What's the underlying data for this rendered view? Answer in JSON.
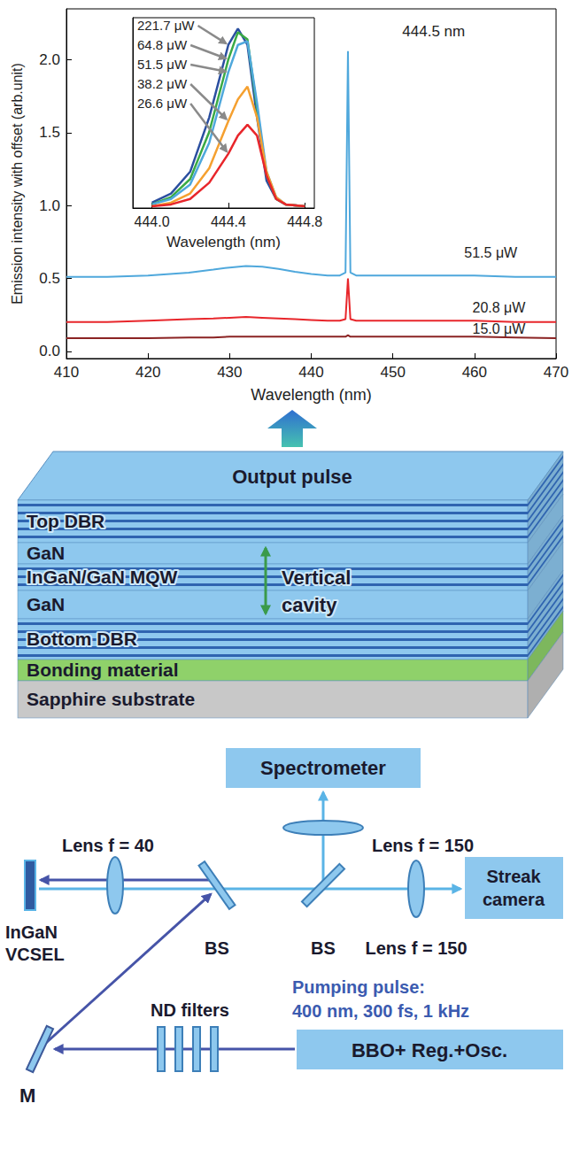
{
  "chart_data": [
    {
      "type": "line",
      "x_label": "Wavelength (nm)",
      "y_label": "Emission intensity with offset (arb.unit)",
      "xlim": [
        410,
        470
      ],
      "xticks": [
        410,
        420,
        430,
        440,
        450,
        460,
        470
      ],
      "ylim": [
        -0.05,
        2.35
      ],
      "yticks": [
        {
          "value": 0,
          "label": "0.0"
        },
        {
          "value": 0.5,
          "label": "0.5"
        },
        {
          "value": 1,
          "label": "1.0"
        },
        {
          "value": 1.5,
          "label": "1.5"
        },
        {
          "value": 2,
          "label": "2.0"
        }
      ],
      "grid": false,
      "series": [
        {
          "name": "51.5 μW",
          "color": "#4fa8dc",
          "name_xy": [
            462,
            0.68
          ],
          "x": [
            410,
            415,
            420,
            425,
            428,
            430,
            432,
            434,
            436,
            438,
            440,
            442,
            443.5,
            444.2,
            444.5,
            444.8,
            445.5,
            447,
            450,
            455,
            460,
            465,
            470
          ],
          "values": [
            0.51,
            0.51,
            0.52,
            0.54,
            0.56,
            0.575,
            0.585,
            0.58,
            0.565,
            0.545,
            0.53,
            0.52,
            0.52,
            0.54,
            2.06,
            0.54,
            0.52,
            0.52,
            0.52,
            0.52,
            0.52,
            0.51,
            0.51
          ]
        },
        {
          "name": "20.8 μW",
          "color": "#e8262b",
          "name_xy": [
            463,
            0.3
          ],
          "x": [
            410,
            415,
            420,
            425,
            428,
            430,
            432,
            434,
            436,
            438,
            440,
            442,
            443.5,
            444.2,
            444.5,
            444.8,
            445.5,
            447,
            450,
            455,
            460,
            465,
            470
          ],
          "values": [
            0.2,
            0.2,
            0.21,
            0.22,
            0.225,
            0.23,
            0.235,
            0.23,
            0.225,
            0.22,
            0.215,
            0.21,
            0.21,
            0.22,
            0.5,
            0.22,
            0.21,
            0.21,
            0.21,
            0.21,
            0.21,
            0.2,
            0.2
          ]
        },
        {
          "name": "15.0 μW",
          "color": "#8b2323",
          "name_xy": [
            463,
            0.155
          ],
          "x": [
            410,
            415,
            420,
            425,
            428,
            430,
            432,
            434,
            436,
            438,
            440,
            442,
            443.5,
            444.2,
            444.5,
            444.8,
            445.5,
            447,
            450,
            455,
            460,
            465,
            470
          ],
          "values": [
            0.09,
            0.09,
            0.09,
            0.095,
            0.095,
            0.1,
            0.1,
            0.1,
            0.1,
            0.1,
            0.1,
            0.1,
            0.1,
            0.1,
            0.11,
            0.1,
            0.1,
            0.1,
            0.1,
            0.1,
            0.1,
            0.095,
            0.09
          ]
        }
      ],
      "annotations": [
        {
          "text": "444.5 nm",
          "x": 455,
          "y": 2.2
        }
      ]
    },
    {
      "type": "line",
      "x_label": "Wavelength (nm)",
      "xlim": [
        443.9,
        444.85
      ],
      "xticks": [
        {
          "value": 444,
          "label": "444.0"
        },
        {
          "value": 444.4,
          "label": "444.4"
        },
        {
          "value": 444.8,
          "label": "444.8"
        }
      ],
      "ylim": [
        0,
        1.05
      ],
      "tick_labels": "x",
      "grid": false,
      "x": [
        444.0,
        444.1,
        444.2,
        444.3,
        444.4,
        444.45,
        444.5,
        444.55,
        444.6,
        444.65,
        444.7,
        444.8
      ],
      "series": [
        {
          "name": "221.7 μW",
          "color": "#2b4fa0",
          "values": [
            0.03,
            0.08,
            0.2,
            0.5,
            0.9,
            0.99,
            0.9,
            0.5,
            0.15,
            0.05,
            0.02,
            0.01
          ]
        },
        {
          "name": "64.8 μW",
          "color": "#3aaa45",
          "values": [
            0.02,
            0.06,
            0.16,
            0.42,
            0.82,
            0.97,
            0.93,
            0.55,
            0.18,
            0.05,
            0.02,
            0.01
          ]
        },
        {
          "name": "51.5 μW",
          "color": "#4fa8dc",
          "values": [
            0.02,
            0.05,
            0.13,
            0.36,
            0.75,
            0.9,
            0.92,
            0.58,
            0.2,
            0.06,
            0.02,
            0.01
          ]
        },
        {
          "name": "38.2 μW",
          "color": "#f5a030",
          "values": [
            0.01,
            0.03,
            0.08,
            0.22,
            0.48,
            0.6,
            0.67,
            0.5,
            0.2,
            0.06,
            0.02,
            0.01
          ]
        },
        {
          "name": "26.6 μW",
          "color": "#e8262b",
          "values": [
            0.01,
            0.02,
            0.05,
            0.14,
            0.3,
            0.4,
            0.46,
            0.4,
            0.18,
            0.05,
            0.02,
            0.01
          ]
        }
      ]
    }
  ],
  "structure": {
    "output_label": "Output pulse",
    "layers": [
      {
        "label": "Top DBR",
        "color": "#8ec8ee",
        "stripes": true
      },
      {
        "label": "GaN",
        "color": "#8ec8ee"
      },
      {
        "label": "InGaN/GaN MQW",
        "color": "#8ec8ee",
        "stripes": true
      },
      {
        "label": "GaN",
        "color": "#8ec8ee"
      },
      {
        "label": "Bottom DBR",
        "color": "#8ec8ee",
        "stripes": true
      },
      {
        "label": "Bonding material",
        "color": "#8fd16a"
      },
      {
        "label": "Sapphire substrate",
        "color": "#c8c8c8"
      }
    ],
    "cavity_label": "Vertical cavity"
  },
  "setup": {
    "spectrometer": "Spectrometer",
    "lens_upper": "Lens f = 150",
    "lens_left": "Lens f = 40",
    "lens_lower": "Lens f = 150",
    "streak_camera": "Streak camera",
    "sample": "InGaN VCSEL",
    "beam_splitters": [
      "BS",
      "BS"
    ],
    "filters": "ND filters",
    "pump": [
      "Pumping pulse:",
      "400 nm, 300 fs, 1 kHz"
    ],
    "source": "BBO+ Reg.+Osc.",
    "mirror": "M"
  }
}
